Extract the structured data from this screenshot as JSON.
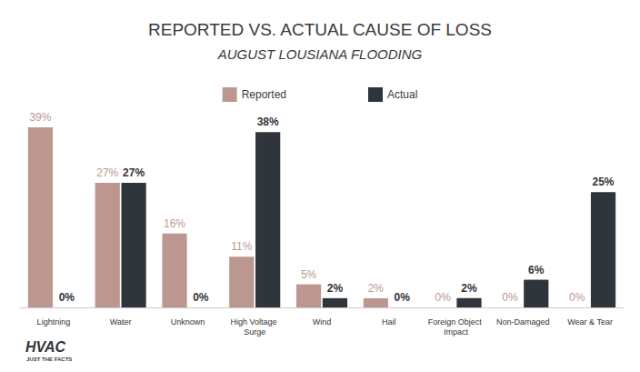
{
  "chart_data": {
    "type": "bar",
    "title": "REPORTED VS. ACTUAL CAUSE OF LOSS",
    "subtitle": "AUGUST LOUSIANA FLOODING",
    "categories": [
      "Lightning",
      "Water",
      "Unknown",
      "High Voltage Surge",
      "Wind",
      "Hail",
      "Foreign Object Impact",
      "Non-Damaged",
      "Wear & Tear"
    ],
    "series": [
      {
        "name": "Reported",
        "color": "#bb978f",
        "values": [
          39,
          27,
          16,
          11,
          5,
          2,
          0,
          0,
          0
        ],
        "value_labels": [
          "39%",
          "27%",
          "16%",
          "11%",
          "5%",
          "2%",
          "0%",
          "0%",
          "0%"
        ]
      },
      {
        "name": "Actual",
        "color": "#2f353b",
        "values": [
          0,
          27,
          0,
          38,
          2,
          0,
          2,
          6,
          25
        ],
        "value_labels": [
          "0%",
          "27%",
          "0%",
          "38%",
          "2%",
          "0%",
          "2%",
          "6%",
          "25%"
        ]
      }
    ],
    "ylim": [
      0,
      40
    ],
    "yticks": [
      0,
      40
    ],
    "grid": false,
    "legend": "top",
    "data_labels": true,
    "tick_labels": "x",
    "annotations": [
      "HVAC",
      "JUST THE FACTS"
    ]
  }
}
